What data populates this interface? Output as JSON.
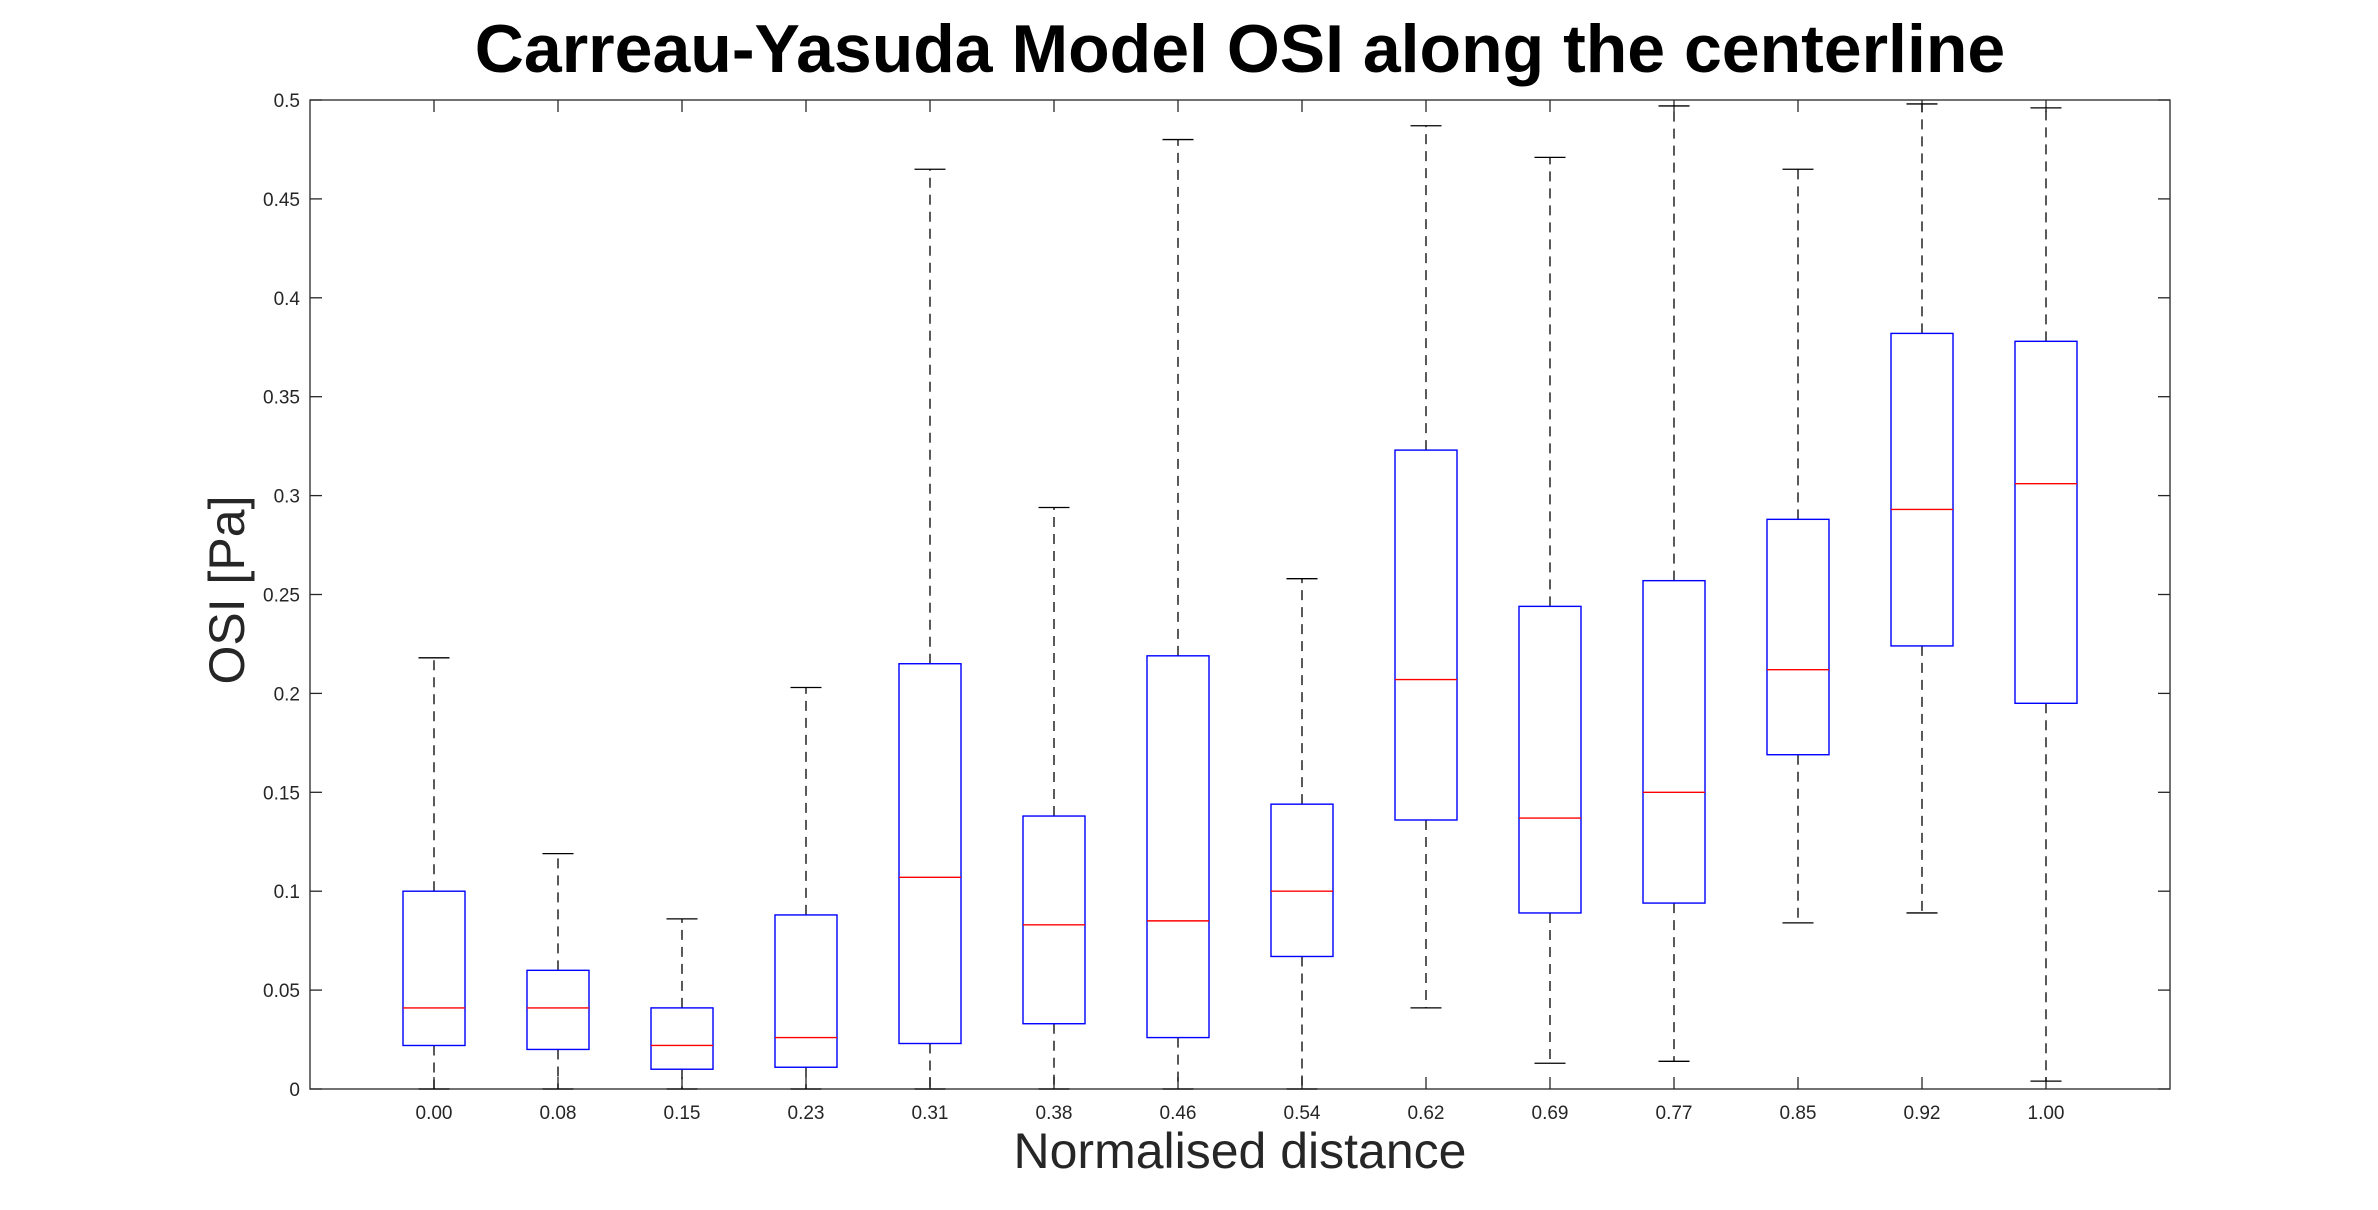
{
  "chart_data": {
    "type": "box",
    "title": "Carreau-Yasuda Model OSI along the centerline",
    "xlabel": "Normalised distance",
    "ylabel": "OSI [Pa]",
    "ylim": [
      0,
      0.5
    ],
    "yticks": [
      "0",
      "0.05",
      "0.1",
      "0.15",
      "0.2",
      "0.25",
      "0.3",
      "0.35",
      "0.4",
      "0.45",
      "0.5"
    ],
    "ytick_values": [
      0,
      0.05,
      0.1,
      0.15,
      0.2,
      0.25,
      0.3,
      0.35,
      0.4,
      0.45,
      0.5
    ],
    "categories": [
      "0.00",
      "0.08",
      "0.15",
      "0.23",
      "0.31",
      "0.38",
      "0.46",
      "0.54",
      "0.62",
      "0.69",
      "0.77",
      "0.85",
      "0.92",
      "1.00"
    ],
    "boxes": [
      {
        "min": 0.0,
        "q1": 0.022,
        "median": 0.041,
        "q3": 0.1,
        "max": 0.218
      },
      {
        "min": 0.0,
        "q1": 0.02,
        "median": 0.041,
        "q3": 0.06,
        "max": 0.119
      },
      {
        "min": 0.0,
        "q1": 0.01,
        "median": 0.022,
        "q3": 0.041,
        "max": 0.086
      },
      {
        "min": 0.0,
        "q1": 0.011,
        "median": 0.026,
        "q3": 0.088,
        "max": 0.203
      },
      {
        "min": 0.0,
        "q1": 0.023,
        "median": 0.107,
        "q3": 0.215,
        "max": 0.465
      },
      {
        "min": 0.0,
        "q1": 0.033,
        "median": 0.083,
        "q3": 0.138,
        "max": 0.294
      },
      {
        "min": 0.0,
        "q1": 0.026,
        "median": 0.085,
        "q3": 0.219,
        "max": 0.48
      },
      {
        "min": 0.0,
        "q1": 0.067,
        "median": 0.1,
        "q3": 0.144,
        "max": 0.258
      },
      {
        "min": 0.041,
        "q1": 0.136,
        "median": 0.207,
        "q3": 0.323,
        "max": 0.487
      },
      {
        "min": 0.013,
        "q1": 0.089,
        "median": 0.137,
        "q3": 0.244,
        "max": 0.471
      },
      {
        "min": 0.014,
        "q1": 0.094,
        "median": 0.15,
        "q3": 0.257,
        "max": 0.497
      },
      {
        "min": 0.084,
        "q1": 0.169,
        "median": 0.212,
        "q3": 0.288,
        "max": 0.465
      },
      {
        "min": 0.089,
        "q1": 0.224,
        "median": 0.293,
        "q3": 0.382,
        "max": 0.498
      },
      {
        "min": 0.004,
        "q1": 0.195,
        "median": 0.306,
        "q3": 0.378,
        "max": 0.496
      }
    ],
    "colors": {
      "box": "#0000ff",
      "median": "#ff0000",
      "whisker": "#000000",
      "axis": "#262626"
    },
    "grid": false,
    "legend": "none"
  }
}
